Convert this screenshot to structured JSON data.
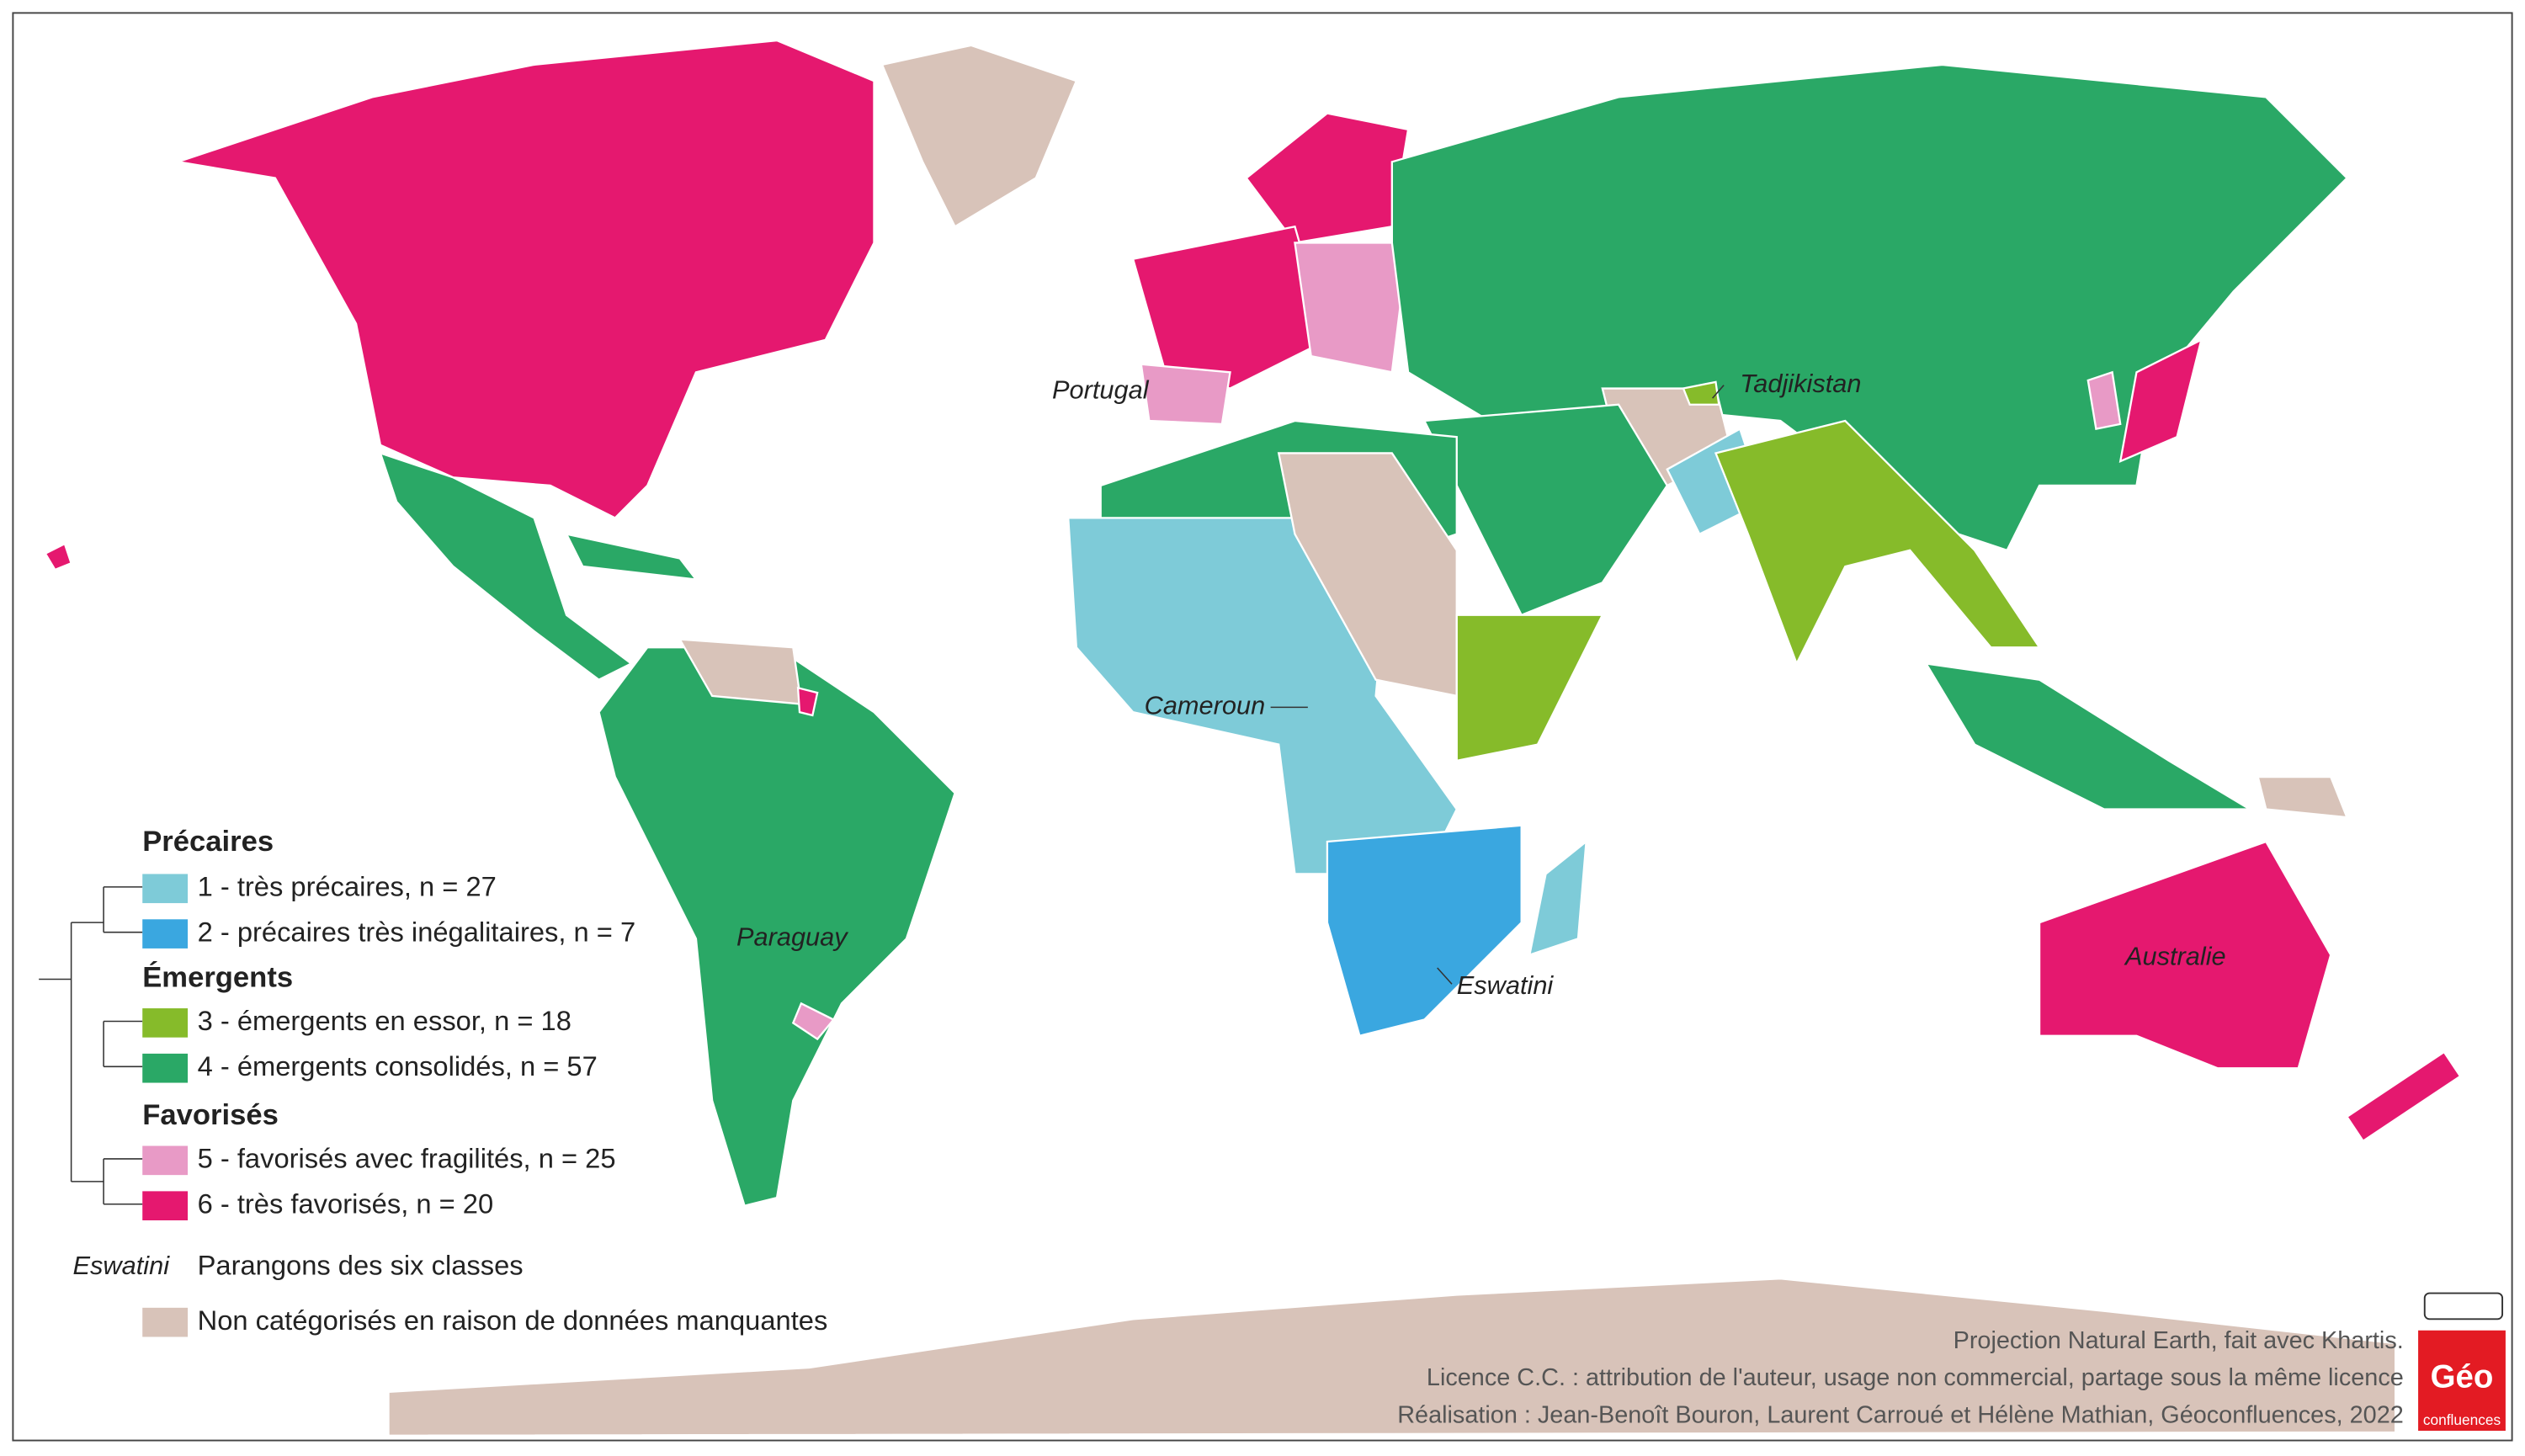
{
  "legend": {
    "groups": [
      {
        "title": "Précaires",
        "classes": [
          {
            "label": "1 - très précaires, n = 27",
            "color": "#7ecbd8"
          },
          {
            "label": "2 - précaires très inégalitaires, n = 7",
            "color": "#3aa7e0"
          }
        ]
      },
      {
        "title": "Émergents",
        "classes": [
          {
            "label": "3 - émergents en essor, n = 18",
            "color": "#86bb2a"
          },
          {
            "label": "4 - émergents consolidés, n = 57",
            "color": "#2aa866"
          }
        ]
      },
      {
        "title": "Favorisés",
        "classes": [
          {
            "label": "5 - favorisés avec fragilités, n = 25",
            "color": "#e89ac6"
          },
          {
            "label": "6 - très favorisés, n = 20",
            "color": "#e5186f"
          }
        ]
      }
    ],
    "exemplar": {
      "example": "Eswatini",
      "label": "Parangons des six classes"
    },
    "missing": {
      "label": "Non catégorisés en raison de données manquantes",
      "color": "#d8c3b9"
    }
  },
  "map_labels": [
    "Portugal",
    "Tadjikistan",
    "Cameroun",
    "Paraguay",
    "Eswatini",
    "Australie"
  ],
  "credits": [
    "Projection Natural Earth, fait avec Khartis.",
    "Licence C.C. : attribution de l'auteur, usage non commercial, partage sous la même licence",
    "Réalisation : Jean-Benoît Bouron, Laurent Carroué et Hélène Mathian, Géoconfluences, 2022"
  ],
  "logo": {
    "title": "Géo",
    "subtitle": "confluences"
  }
}
